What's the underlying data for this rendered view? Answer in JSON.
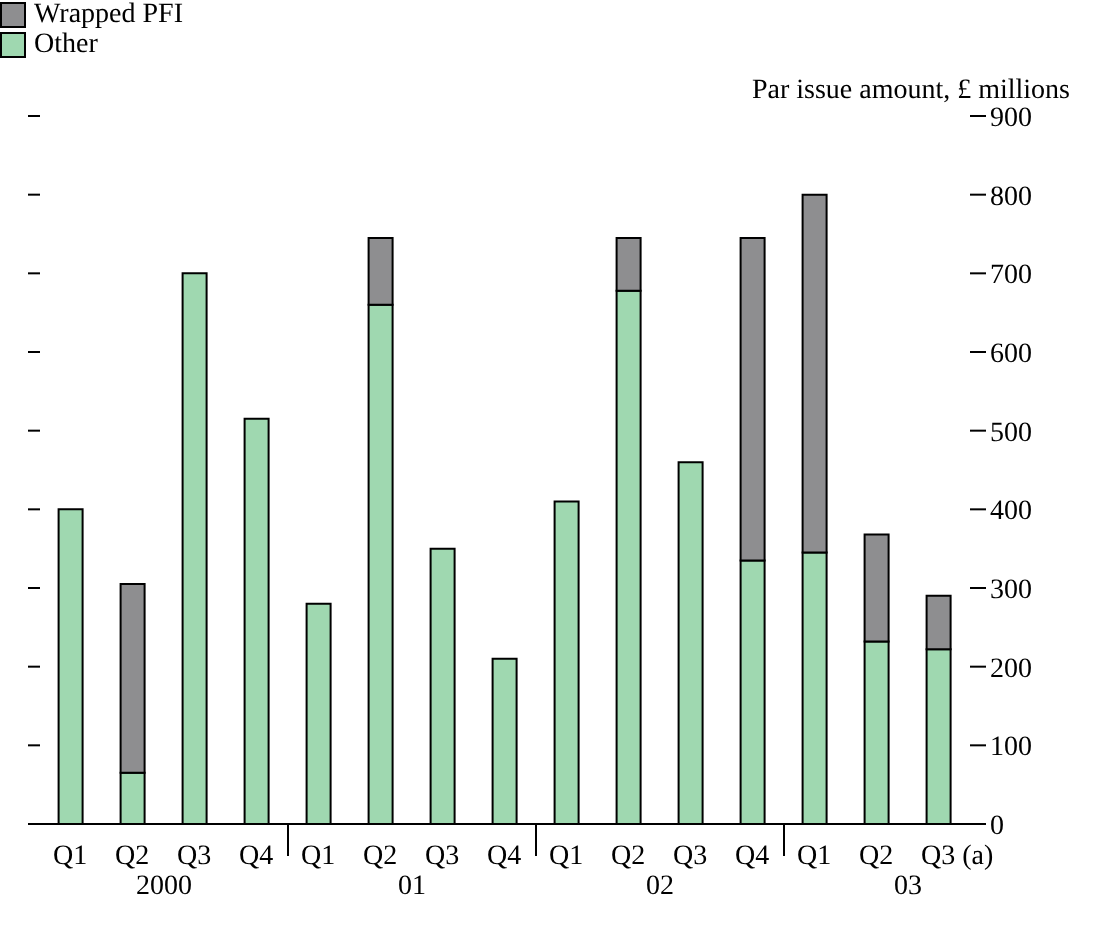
{
  "chart_data": {
    "type": "bar",
    "stacked": true,
    "ylabel": "Par issue amount, £ millions",
    "categories": [
      "Q1",
      "Q2",
      "Q3",
      "Q4",
      "Q1",
      "Q2",
      "Q3",
      "Q4",
      "Q1",
      "Q2",
      "Q3",
      "Q4",
      "Q1",
      "Q2",
      "Q3 (a)"
    ],
    "series": [
      {
        "name": "Other",
        "color": "#9fd8b0",
        "values": [
          400,
          65,
          700,
          515,
          280,
          660,
          350,
          210,
          410,
          678,
          460,
          335,
          345,
          232,
          222
        ]
      },
      {
        "name": "Wrapped PFI",
        "color": "#8e8e90",
        "values": [
          0,
          240,
          0,
          0,
          0,
          85,
          0,
          0,
          0,
          67,
          0,
          410,
          455,
          136,
          68
        ]
      }
    ],
    "ylim": [
      0,
      900
    ],
    "yticks": [
      0,
      100,
      200,
      300,
      400,
      500,
      600,
      700,
      800,
      900
    ],
    "annotations": [
      "2000",
      "01",
      "02",
      "03"
    ],
    "legend": "top left"
  }
}
